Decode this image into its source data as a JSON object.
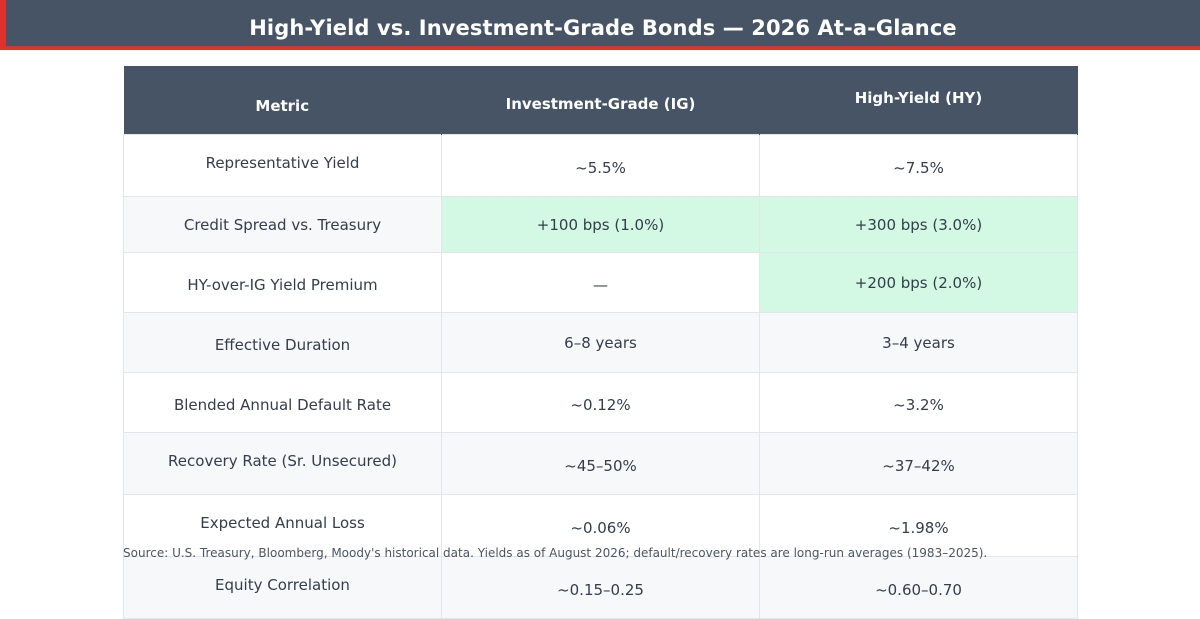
{
  "title": "High-Yield vs. Investment-Grade Bonds — 2026 At-a-Glance",
  "table": {
    "headers": [
      "Metric",
      "Investment-Grade (IG)",
      "High-Yield (HY)"
    ],
    "rows": [
      {
        "metric": "Representative Yield",
        "ig": "~5.5%",
        "hy": "~7.5%"
      },
      {
        "metric": "Credit Spread vs. Treasury",
        "ig": "+100 bps (1.0%)",
        "hy": "+300 bps (3.0%)"
      },
      {
        "metric": "HY-over-IG Yield Premium",
        "ig": "—",
        "hy": "+200 bps (2.0%)"
      },
      {
        "metric": "Effective Duration",
        "ig": "6–8 years",
        "hy": "3–4 years"
      },
      {
        "metric": "Blended Annual Default Rate",
        "ig": "~0.12%",
        "hy": "~3.2%"
      },
      {
        "metric": "Recovery Rate (Sr. Unsecured)",
        "ig": "~45–50%",
        "hy": "~37–42%"
      },
      {
        "metric": "Expected Annual Loss",
        "ig": "~0.06%",
        "hy": "~1.98%"
      },
      {
        "metric": "Equity Correlation",
        "ig": "~0.15–0.25",
        "hy": "~0.60–0.70"
      }
    ]
  },
  "source": "Source: U.S. Treasury, Bloomberg, Moody's historical data. Yields as of August 2026; default/recovery rates are long-run averages (1983–2025).",
  "colors": {
    "header_bg": "#465466",
    "accent": "#e03131",
    "highlight": "#d3f9e4",
    "alt_row": "#f6f8fa"
  }
}
